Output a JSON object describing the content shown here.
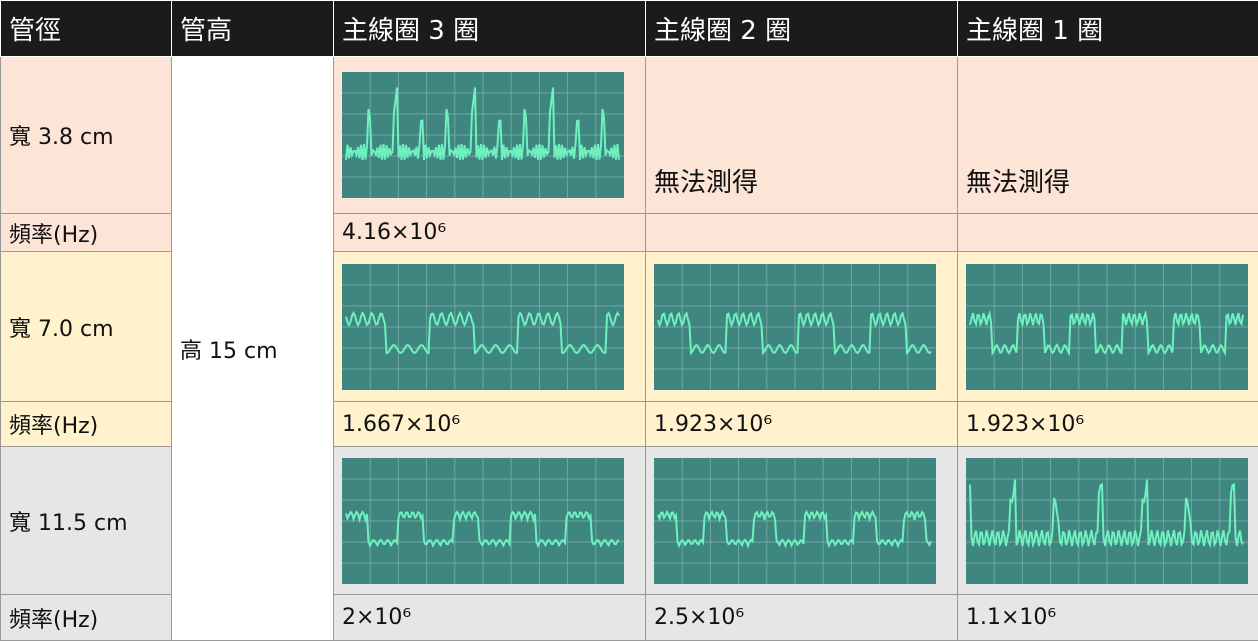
{
  "table": {
    "header": [
      "管徑",
      "管高",
      "主線圈 3 圈",
      "主線圈 2 圈",
      "主線圈 1 圈"
    ],
    "height": "高 15 cm",
    "groups": [
      {
        "label": "寬 3.8 cm",
        "cells": [
          null,
          "無法測得",
          "無法測得"
        ],
        "freq_label": "頻率(Hz)",
        "freqs": [
          "4.16×10⁶",
          null,
          null
        ]
      },
      {
        "label": "寬 7.0 cm",
        "cells": [
          null,
          null,
          null
        ],
        "freq_label": "頻率(Hz)",
        "freqs": [
          "1.667×10⁶",
          "1.923×10⁶",
          "1.923×10⁶"
        ]
      },
      {
        "label": "寬 11.5 cm",
        "cells": [
          null,
          null,
          null
        ],
        "freq_label": "頻率(Hz)",
        "freqs": [
          "2×10⁶",
          "2.5×10⁶",
          "1.1×10⁶"
        ]
      }
    ]
  }
}
